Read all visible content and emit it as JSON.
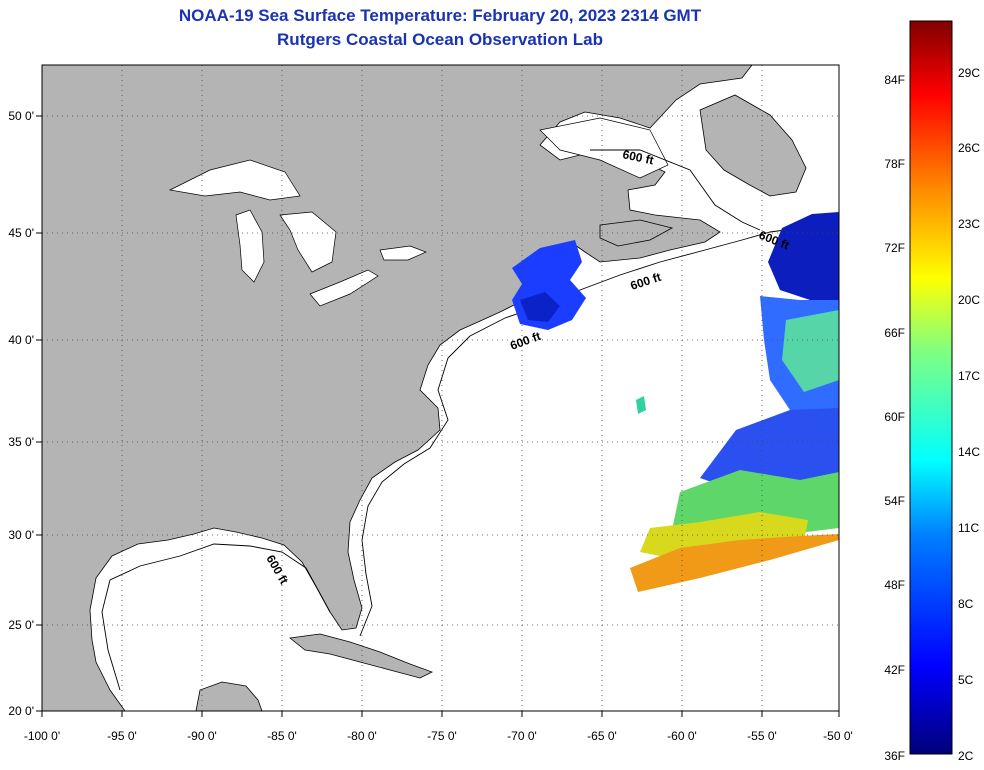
{
  "title": "NOAA-19 Sea Surface Temperature:  February 20, 2023 2314 GMT",
  "subtitle": "Rutgers Coastal Ocean Observation Lab",
  "map": {
    "lon_ticks": [
      "-100 0'",
      "-95 0'",
      "-90 0'",
      "-85 0'",
      "-80 0'",
      "-75 0'",
      "-70 0'",
      "-65 0'",
      "-60 0'",
      "-55 0'",
      "-50 0'"
    ],
    "lat_ticks": [
      "50 0'",
      "45 0'",
      "40 0'",
      "35 0'",
      "30 0'",
      "25 0'",
      "20 0'"
    ],
    "contour_labels": [
      "600 ft",
      "600 ft",
      "600 ft",
      "600 ft",
      "600 ft"
    ],
    "land_color": "#b4b4b4",
    "grid": "dotted"
  },
  "colorbar": {
    "fahrenheit": [
      "84F",
      "78F",
      "72F",
      "66F",
      "60F",
      "54F",
      "48F",
      "42F",
      "36F"
    ],
    "celsius": [
      "29C",
      "26C",
      "23C",
      "20C",
      "17C",
      "14C",
      "11C",
      "8C",
      "5C",
      "2C"
    ]
  }
}
